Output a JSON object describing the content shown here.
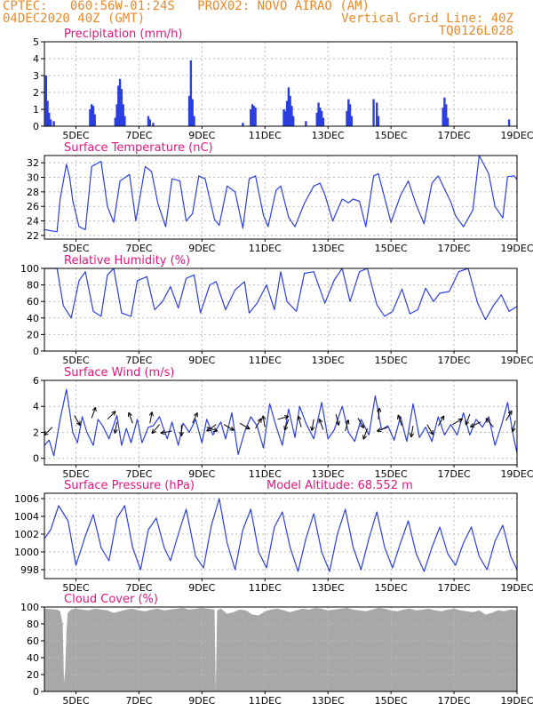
{
  "header": {
    "line1_left": "CPTEC:   060:56W-01:24S   PROX02: NOVO AIRAO (AM)",
    "line2_left": "04DEC2020 40Z (GMT)",
    "line2_right": "Vertical Grid Line: 40Z",
    "line3_right": "TQ0126L028"
  },
  "colors": {
    "header": "#e88a2c",
    "title": "#e0177f",
    "series": "#2b3fe0",
    "cloud": "#a8a8a8",
    "grid": "#bbbbbb"
  },
  "x_axis": {
    "start_day": 4,
    "end_day": 19,
    "tick_labels": [
      "5DEC",
      "7DEC",
      "9DEC",
      "11DEC",
      "13DEC",
      "15DEC",
      "17DEC",
      "19DEC"
    ],
    "tick_days": [
      5,
      7,
      9,
      11,
      13,
      15,
      17,
      19
    ]
  },
  "chart_data": [
    {
      "type": "bar",
      "title": "Precipitation (mm/h)",
      "ylim": [
        0,
        5
      ],
      "yticks": [
        0,
        1,
        2,
        3,
        4,
        5
      ],
      "x": [
        4.05,
        4.1,
        4.15,
        4.2,
        4.3,
        5.45,
        5.5,
        5.55,
        5.6,
        6.25,
        6.3,
        6.35,
        6.4,
        6.45,
        6.5,
        6.55,
        7.3,
        7.35,
        7.45,
        8.6,
        8.65,
        8.7,
        8.75,
        10.3,
        10.55,
        10.6,
        10.65,
        10.7,
        11.6,
        11.65,
        11.7,
        11.75,
        11.8,
        11.85,
        11.9,
        12.3,
        12.65,
        12.7,
        12.75,
        12.8,
        12.85,
        13.6,
        13.65,
        13.7,
        13.75,
        14.45,
        14.55,
        14.6,
        16.65,
        16.7,
        16.75,
        16.8,
        18.75
      ],
      "values": [
        3.0,
        1.5,
        0.8,
        0.4,
        0.3,
        1.0,
        1.3,
        1.2,
        0.7,
        0.5,
        1.3,
        2.4,
        2.8,
        2.2,
        1.3,
        0.6,
        0.6,
        0.4,
        0.2,
        1.8,
        3.9,
        1.6,
        0.6,
        0.2,
        1.0,
        1.3,
        1.2,
        1.1,
        1.0,
        0.9,
        1.5,
        2.3,
        1.8,
        1.2,
        0.6,
        0.3,
        0.8,
        1.4,
        1.1,
        0.9,
        0.5,
        0.9,
        1.6,
        1.3,
        0.6,
        1.6,
        1.4,
        0.6,
        1.1,
        1.7,
        1.3,
        0.5,
        0.4
      ]
    },
    {
      "type": "line",
      "title": "Surface Temperature (nC)",
      "ylim": [
        21.5,
        33
      ],
      "yticks": [
        22,
        24,
        26,
        28,
        30,
        32
      ],
      "x": [
        4.0,
        4.4,
        4.5,
        4.7,
        4.8,
        4.9,
        5.1,
        5.3,
        5.5,
        5.8,
        6.0,
        6.2,
        6.4,
        6.7,
        6.9,
        7.2,
        7.4,
        7.6,
        7.85,
        8.05,
        8.3,
        8.5,
        8.7,
        8.9,
        9.1,
        9.4,
        9.55,
        9.8,
        10.05,
        10.3,
        10.5,
        10.7,
        10.95,
        11.1,
        11.35,
        11.5,
        11.75,
        11.95,
        12.25,
        12.55,
        12.75,
        12.9,
        13.15,
        13.45,
        13.65,
        13.8,
        14.0,
        14.2,
        14.45,
        14.6,
        15.0,
        15.3,
        15.55,
        15.8,
        16.05,
        16.3,
        16.5,
        16.9,
        17.05,
        17.3,
        17.6,
        17.8,
        18.1,
        18.3,
        18.55,
        18.7,
        18.9,
        19.0
      ],
      "values": [
        22.8,
        22.5,
        27,
        31.8,
        30,
        26.8,
        23.2,
        22.8,
        31.5,
        32.2,
        26,
        23.8,
        29.5,
        30.4,
        24,
        31.5,
        30.8,
        26.4,
        23.2,
        29.8,
        29.5,
        24,
        25,
        30.2,
        29.8,
        24.2,
        23.4,
        28.8,
        28,
        23,
        29.8,
        30.2,
        24.8,
        23.2,
        28.2,
        28.8,
        24.5,
        23.2,
        26.4,
        28.8,
        29.2,
        27.6,
        24,
        27,
        26.5,
        27.0,
        26.7,
        23.2,
        30.2,
        30.5,
        23.8,
        27.5,
        29.5,
        26.2,
        23.6,
        29.2,
        30.2,
        26.6,
        24.7,
        23.2,
        25.5,
        33.0,
        30.5,
        26,
        24.4,
        30.1,
        30.2,
        29.7
      ]
    },
    {
      "type": "line",
      "title": "Relative Humidity (%)",
      "ylim": [
        0,
        100
      ],
      "yticks": [
        0,
        20,
        40,
        60,
        80,
        100
      ],
      "x": [
        4.0,
        4.4,
        4.6,
        4.85,
        5.1,
        5.3,
        5.55,
        5.8,
        6.0,
        6.2,
        6.45,
        6.75,
        6.95,
        7.25,
        7.5,
        7.75,
        8.0,
        8.25,
        8.5,
        8.75,
        8.95,
        9.25,
        9.45,
        9.75,
        10.05,
        10.35,
        10.5,
        10.75,
        11.05,
        11.3,
        11.5,
        11.7,
        12.0,
        12.25,
        12.55,
        12.9,
        13.2,
        13.45,
        13.7,
        14.0,
        14.25,
        14.55,
        14.8,
        15.05,
        15.35,
        15.6,
        15.85,
        16.1,
        16.35,
        16.55,
        16.85,
        17.15,
        17.45,
        17.75,
        18.0,
        18.25,
        18.5,
        18.75,
        19.0
      ],
      "values": [
        100,
        100,
        55,
        40,
        85,
        96,
        48,
        42,
        92,
        100,
        46,
        42,
        85,
        90,
        50,
        60,
        78,
        52,
        88,
        92,
        46,
        80,
        84,
        50,
        74,
        84,
        46,
        58,
        80,
        50,
        96,
        60,
        48,
        94,
        96,
        58,
        86,
        100,
        60,
        96,
        100,
        56,
        42,
        48,
        75,
        45,
        50,
        76,
        60,
        70,
        72,
        96,
        100,
        58,
        38,
        55,
        68,
        48,
        54
      ]
    },
    {
      "type": "line",
      "title": "Surface Wind (m/s)",
      "ylim": [
        -0.5,
        6
      ],
      "yticks": [
        0,
        2,
        4,
        6
      ],
      "x": [
        4.0,
        4.15,
        4.3,
        4.5,
        4.7,
        4.9,
        5.05,
        5.2,
        5.35,
        5.55,
        5.7,
        5.85,
        6.05,
        6.3,
        6.45,
        6.6,
        6.75,
        6.95,
        7.1,
        7.3,
        7.45,
        7.65,
        7.9,
        8.05,
        8.25,
        8.4,
        8.6,
        8.8,
        9.0,
        9.15,
        9.35,
        9.6,
        9.75,
        9.95,
        10.15,
        10.35,
        10.55,
        10.75,
        10.95,
        11.15,
        11.35,
        11.55,
        11.75,
        11.95,
        12.1,
        12.3,
        12.55,
        12.8,
        13.0,
        13.2,
        13.45,
        13.65,
        13.85,
        14.05,
        14.3,
        14.5,
        14.7,
        14.9,
        15.1,
        15.3,
        15.5,
        15.7,
        15.9,
        16.1,
        16.3,
        16.5,
        16.7,
        16.9,
        17.1,
        17.3,
        17.5,
        17.7,
        17.9,
        18.1,
        18.3,
        18.5,
        18.7,
        18.9,
        19.0
      ],
      "values": [
        1.0,
        1.4,
        0.2,
        3.0,
        5.3,
        2.0,
        1.2,
        3.2,
        2.0,
        1.0,
        3.0,
        2.5,
        1.5,
        3.3,
        1.0,
        2.3,
        1.2,
        3.0,
        1.2,
        2.4,
        2.5,
        3.2,
        1.5,
        2.8,
        1.0,
        2.7,
        2.0,
        3.0,
        1.2,
        3.0,
        1.8,
        2.8,
        1.5,
        3.5,
        0.3,
        2.0,
        3.2,
        2.5,
        0.8,
        4.2,
        2.5,
        1.0,
        3.8,
        1.6,
        4.0,
        2.7,
        1.5,
        4.3,
        1.5,
        2.2,
        4.0,
        2.0,
        1.3,
        3.0,
        1.8,
        4.8,
        2.2,
        2.5,
        1.4,
        3.2,
        1.3,
        4.2,
        1.6,
        2.4,
        1.3,
        3.2,
        1.8,
        2.6,
        1.8,
        3.5,
        1.8,
        3.0,
        2.4,
        3.2,
        1.0,
        2.5,
        4.3,
        1.5,
        0.4
      ]
    },
    {
      "type": "line",
      "title": "Surface Pressure (hPa)",
      "annotation": "Model Altitude: 68.552 m",
      "ylim": [
        997,
        1006.6
      ],
      "yticks": [
        998,
        1000,
        1002,
        1004,
        1006
      ],
      "x": [
        4.0,
        4.2,
        4.45,
        4.75,
        5.0,
        5.3,
        5.55,
        5.8,
        6.05,
        6.3,
        6.55,
        6.8,
        7.05,
        7.3,
        7.55,
        7.8,
        8.0,
        8.25,
        8.5,
        8.8,
        9.05,
        9.3,
        9.55,
        9.8,
        10.05,
        10.3,
        10.55,
        10.8,
        11.05,
        11.3,
        11.55,
        11.8,
        12.05,
        12.3,
        12.55,
        12.8,
        13.05,
        13.3,
        13.55,
        13.8,
        14.05,
        14.3,
        14.55,
        14.8,
        15.05,
        15.3,
        15.55,
        15.8,
        16.05,
        16.3,
        16.55,
        16.8,
        17.05,
        17.3,
        17.55,
        17.8,
        18.05,
        18.3,
        18.55,
        18.8,
        19.0
      ],
      "values": [
        1001.5,
        1002.5,
        1005.2,
        1003.5,
        998.5,
        1001.8,
        1004.2,
        1000.5,
        999.0,
        1003.8,
        1005.2,
        1000.5,
        998.0,
        1002.5,
        1003.8,
        1000.5,
        999.0,
        1002.0,
        1004.8,
        999.5,
        998.2,
        1003.0,
        1006.0,
        1001.0,
        998.0,
        1002.5,
        1004.8,
        1000.0,
        998.2,
        1002.8,
        1004.5,
        1000.5,
        997.8,
        1001.5,
        1004.3,
        1000.0,
        997.8,
        1002.0,
        1004.8,
        1000.5,
        998.0,
        1001.5,
        1004.5,
        1000.5,
        998.2,
        1001.0,
        1003.5,
        999.8,
        997.8,
        1000.5,
        1002.8,
        999.8,
        998.5,
        1001.0,
        1002.8,
        999.5,
        998.0,
        1001.2,
        1003.0,
        999.5,
        998.0
      ]
    },
    {
      "type": "area",
      "title": "Cloud Cover (%)",
      "ylim": [
        0,
        100
      ],
      "yticks": [
        0,
        20,
        40,
        60,
        80,
        100
      ],
      "x": [
        4.0,
        4.4,
        4.5,
        4.58,
        4.62,
        4.66,
        4.7,
        4.74,
        4.85,
        5.0,
        5.2,
        5.4,
        5.6,
        5.8,
        6.0,
        6.2,
        6.4,
        6.6,
        6.8,
        7.0,
        7.2,
        7.4,
        7.6,
        7.8,
        8.0,
        8.2,
        8.4,
        8.6,
        8.8,
        9.0,
        9.2,
        9.4,
        9.44,
        9.48,
        9.6,
        9.8,
        10.0,
        10.2,
        10.4,
        10.6,
        10.8,
        11.0,
        11.2,
        11.4,
        11.6,
        11.8,
        12.0,
        12.2,
        12.4,
        12.6,
        12.8,
        13.0,
        13.2,
        13.4,
        13.6,
        13.8,
        14.0,
        14.2,
        14.4,
        14.6,
        14.8,
        15.0,
        15.2,
        15.4,
        15.6,
        15.8,
        16.0,
        16.2,
        16.4,
        16.6,
        16.8,
        17.0,
        17.2,
        17.4,
        17.6,
        17.8,
        18.0,
        18.2,
        18.4,
        18.6,
        18.8,
        19.0
      ],
      "values": [
        98,
        97,
        95,
        80,
        10,
        25,
        70,
        93,
        97,
        98,
        97,
        96,
        98,
        97,
        96,
        93,
        95,
        97,
        98,
        96,
        95,
        97,
        98,
        96,
        97,
        98,
        99,
        97,
        98,
        99,
        98,
        97,
        0,
        96,
        98,
        92,
        94,
        97,
        96,
        91,
        90,
        95,
        97,
        98,
        96,
        94,
        96,
        98,
        97,
        99,
        98,
        96,
        97,
        98,
        99,
        97,
        96,
        95,
        97,
        99,
        98,
        96,
        95,
        97,
        98,
        96,
        97,
        98,
        96,
        95,
        97,
        98,
        96,
        95,
        94,
        96,
        91,
        93,
        96,
        95,
        97,
        96
      ]
    }
  ],
  "wind_arrows": {
    "x": [
      4.25,
      4.95,
      5.5,
      6.0,
      6.3,
      6.8,
      7.35,
      7.65,
      8.05,
      8.35,
      8.7,
      9.15,
      9.45,
      9.7,
      10.2,
      10.7,
      11.0,
      11.4,
      11.75,
      12.15,
      12.55,
      12.85,
      13.25,
      13.55,
      13.95,
      14.25,
      14.6,
      14.9,
      15.35,
      15.7,
      16.15,
      16.5,
      16.95,
      17.5,
      17.85,
      18.25,
      18.65,
      18.95
    ],
    "y": [
      2.4,
      3.3,
      3.1,
      3.0,
      2.8,
      2.7,
      2.7,
      2.6,
      2.1,
      2.6,
      2.7,
      2.4,
      2.6,
      2.6,
      2.7,
      2.3,
      2.4,
      3.0,
      3.0,
      2.4,
      3.0,
      2.2,
      3.4,
      2.1,
      3.1,
      2.3,
      3.0,
      2.4,
      2.5,
      2.5,
      2.6,
      2.5,
      2.6,
      3.4,
      2.8,
      2.4,
      2.9,
      2.9
    ],
    "angle": [
      225,
      300,
      70,
      45,
      260,
      110,
      80,
      230,
      190,
      270,
      65,
      340,
      215,
      330,
      330,
      60,
      100,
      15,
      250,
      105,
      260,
      110,
      285,
      75,
      300,
      250,
      85,
      200,
      110,
      260,
      300,
      60,
      30,
      250,
      205,
      130,
      60,
      255
    ]
  }
}
